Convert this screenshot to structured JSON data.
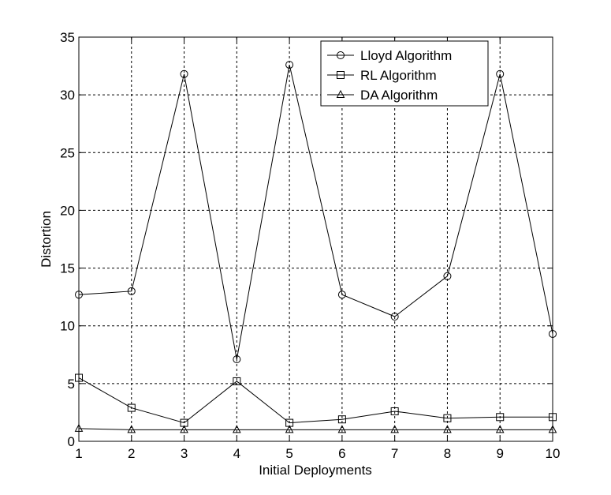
{
  "chart_data": {
    "type": "line",
    "title": "",
    "xlabel": "Initial Deployments",
    "ylabel": "Distortion",
    "x": [
      1,
      2,
      3,
      4,
      5,
      6,
      7,
      8,
      9,
      10
    ],
    "xlim": [
      1,
      10
    ],
    "ylim": [
      0,
      35
    ],
    "xticks": [
      "1",
      "2",
      "3",
      "4",
      "5",
      "6",
      "7",
      "8",
      "9",
      "10"
    ],
    "yticks": [
      "0",
      "5",
      "10",
      "15",
      "20",
      "25",
      "30",
      "35"
    ],
    "grid": true,
    "legend_position": "top-right",
    "series": [
      {
        "name": "Lloyd Algorithm",
        "marker": "circle",
        "values": [
          12.7,
          13.0,
          31.8,
          7.1,
          32.6,
          12.7,
          10.8,
          14.3,
          31.8,
          9.3
        ]
      },
      {
        "name": "RL Algorithm",
        "marker": "square",
        "values": [
          5.5,
          2.9,
          1.6,
          5.2,
          1.6,
          1.9,
          2.6,
          2.0,
          2.1,
          2.1
        ]
      },
      {
        "name": "DA Algorithm",
        "marker": "triangle",
        "values": [
          1.1,
          1.0,
          1.0,
          1.0,
          1.0,
          1.0,
          1.0,
          1.0,
          1.0,
          1.0
        ]
      }
    ],
    "colors": {
      "line": "#000000",
      "grid": "#000000",
      "background": "#ffffff"
    }
  }
}
